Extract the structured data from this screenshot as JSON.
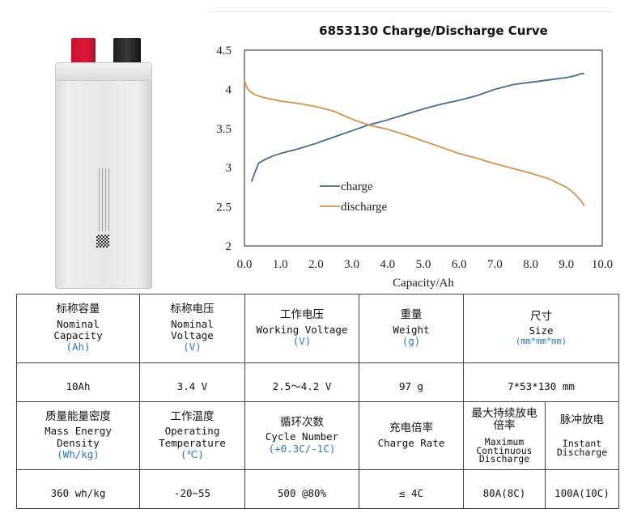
{
  "product_image": {
    "description": "Silver lithium polymer pouch cell with red and black tabs",
    "tab_colors": {
      "positive": "#d3122f",
      "negative": "#222222"
    }
  },
  "chart_data": {
    "type": "line",
    "title": "6853130 Charge/Discharge Curve",
    "xlabel": "Capacity/Ah",
    "ylabel": "",
    "xlim": [
      0.0,
      10.0
    ],
    "ylim": [
      2,
      4.5
    ],
    "x_ticks": [
      "0.0",
      "1.0",
      "2.0",
      "3.0",
      "4.0",
      "5.0",
      "6.0",
      "7.0",
      "8.0",
      "9.0",
      "10.0"
    ],
    "y_ticks": [
      "4.5",
      "4",
      "3.5",
      "3",
      "2.5",
      "2"
    ],
    "grid": false,
    "legend_position": "inside-lower-left",
    "series": [
      {
        "name": "charge",
        "color": "#4a6a8a",
        "x": [
          0.2,
          0.3,
          0.4,
          0.6,
          0.8,
          1.0,
          1.5,
          2.0,
          2.5,
          3.0,
          3.5,
          4.0,
          4.5,
          5.0,
          5.5,
          6.0,
          6.5,
          7.0,
          7.5,
          8.0,
          8.5,
          9.0,
          9.3,
          9.4,
          9.5
        ],
        "y": [
          2.82,
          2.95,
          3.06,
          3.11,
          3.15,
          3.18,
          3.24,
          3.31,
          3.39,
          3.47,
          3.55,
          3.61,
          3.68,
          3.75,
          3.81,
          3.86,
          3.92,
          4.0,
          4.06,
          4.09,
          4.12,
          4.15,
          4.18,
          4.2,
          4.2
        ]
      },
      {
        "name": "discharge",
        "color": "#d4934a",
        "x": [
          0.0,
          0.05,
          0.1,
          0.2,
          0.3,
          0.5,
          0.8,
          1.0,
          1.5,
          2.0,
          2.5,
          3.0,
          3.5,
          4.0,
          4.5,
          5.0,
          5.5,
          6.0,
          6.5,
          7.0,
          7.5,
          8.0,
          8.5,
          9.0,
          9.2,
          9.4,
          9.5
        ],
        "y": [
          4.12,
          4.04,
          4.0,
          3.96,
          3.93,
          3.9,
          3.87,
          3.85,
          3.82,
          3.78,
          3.72,
          3.62,
          3.54,
          3.49,
          3.42,
          3.34,
          3.26,
          3.18,
          3.12,
          3.05,
          2.99,
          2.93,
          2.86,
          2.75,
          2.68,
          2.58,
          2.51
        ]
      }
    ]
  },
  "spec_table": {
    "row1_headers": [
      {
        "zh": "标称容量",
        "en": "Nominal Capacity",
        "en_lines": [
          "Nominal",
          "Capacity"
        ],
        "unit": "(Ah)"
      },
      {
        "zh": "标称电压",
        "en": "Nominal Voltage",
        "en_lines": [
          "Nominal",
          "Voltage"
        ],
        "unit": "(V)"
      },
      {
        "zh": "工作电压",
        "en": "Working Voltage",
        "en_lines": [
          "Working Voltage"
        ],
        "unit": "(V)"
      },
      {
        "zh": "重量",
        "en": "Weight",
        "en_lines": [
          "Weight"
        ],
        "unit": "(g)"
      },
      {
        "zh": "尺寸",
        "en": "Size",
        "en_lines": [
          "Size"
        ],
        "unit": "(mm*mm*mm)"
      }
    ],
    "row1_values": [
      "10Ah",
      "3.4 V",
      "2.5～4.2 V",
      "97 g",
      "7*53*130 mm"
    ],
    "row2_headers": [
      {
        "zh": "质量能量密度",
        "en_lines": [
          "Mass Energy",
          "Density"
        ],
        "unit": "(Wh/kg)"
      },
      {
        "zh": "工作温度",
        "en_lines": [
          "Operating",
          "Temperature"
        ],
        "unit": "(℃)"
      },
      {
        "zh": "循环次数",
        "en_lines": [
          "Cycle Number"
        ],
        "unit": "(+0.3C/-1C)"
      },
      {
        "zh": "充电倍率",
        "en_lines": [
          "Charge Rate"
        ],
        "unit": ""
      },
      {
        "zh_lines": [
          "最大持续放电",
          "倍率"
        ],
        "en_lines": [
          "Maximum",
          "Continuous",
          "Discharge"
        ],
        "unit": ""
      },
      {
        "zh": "脉冲放电",
        "en_lines": [
          "Instant",
          "Discharge"
        ],
        "unit": ""
      }
    ],
    "row2_values": [
      "360 wh/kg",
      "-20~55",
      "500  @80%",
      "≤ 4C",
      "80A(8C)",
      "100A(10C)"
    ],
    "unit_color": "#2a7ab8",
    "border_color": "#444444"
  }
}
